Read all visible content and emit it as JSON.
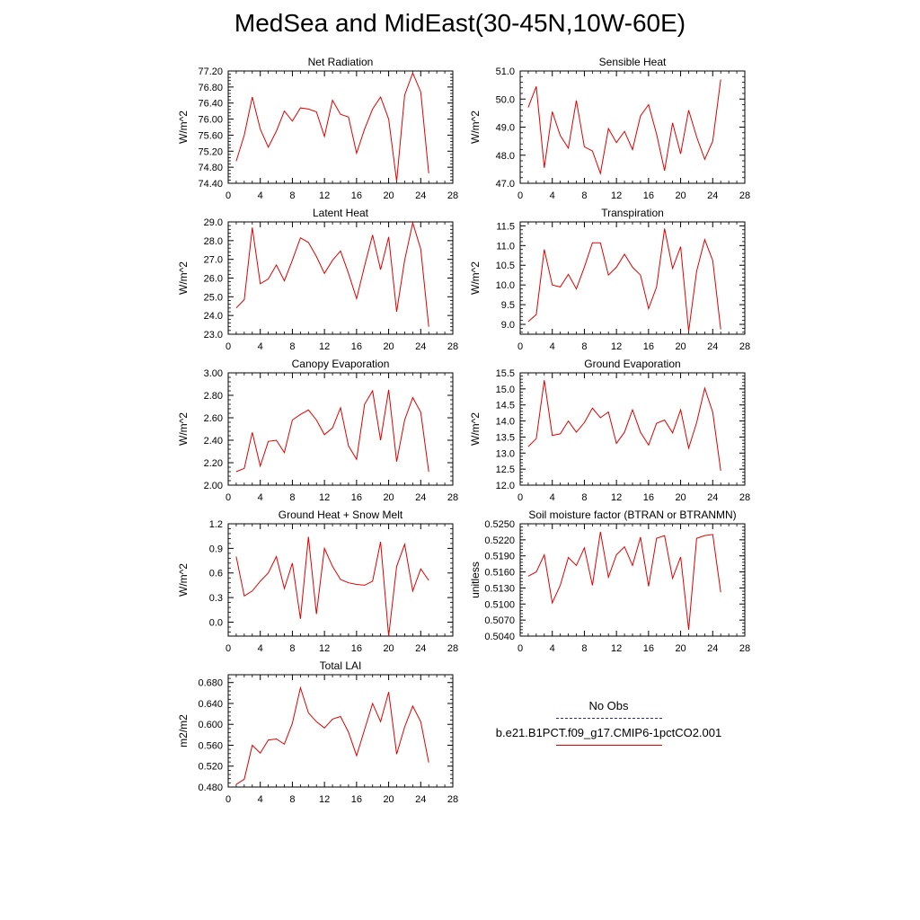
{
  "title": "MedSea and MidEast(30-45N,10W-60E)",
  "legend": {
    "obs_label": "No Obs",
    "model_label": "b.e21.B1PCT.f09_g17.CMIP6-1pctCO2.001",
    "obs_color": "#2a2a8a",
    "model_color": "#e00000"
  },
  "chart_data": [
    {
      "type": "line",
      "title": "Net Radiation",
      "ylabel": "W/m^2",
      "xlim": [
        0,
        28
      ],
      "ylim": [
        74.4,
        77.2
      ],
      "xticks": [
        "0",
        "4",
        "8",
        "12",
        "16",
        "20",
        "24",
        "28"
      ],
      "yticks": [
        "74.40",
        "74.80",
        "75.20",
        "75.60",
        "76.00",
        "76.40",
        "76.80",
        "77.20"
      ],
      "x": [
        1,
        2,
        3,
        4,
        5,
        6,
        7,
        8,
        9,
        10,
        11,
        12,
        13,
        14,
        15,
        16,
        17,
        18,
        19,
        20,
        21,
        22,
        23,
        24,
        25
      ],
      "values": [
        74.95,
        75.6,
        76.55,
        75.75,
        75.3,
        75.7,
        76.2,
        75.95,
        76.28,
        76.25,
        76.18,
        75.57,
        76.47,
        76.12,
        76.05,
        75.15,
        75.75,
        76.25,
        76.55,
        76.0,
        74.45,
        76.6,
        77.15,
        76.68,
        74.65
      ]
    },
    {
      "type": "line",
      "title": "Sensible Heat",
      "ylabel": "W/m^2",
      "xlim": [
        0,
        28
      ],
      "ylim": [
        47.0,
        51.0
      ],
      "xticks": [
        "0",
        "4",
        "8",
        "12",
        "16",
        "20",
        "24",
        "28"
      ],
      "yticks": [
        "47.0",
        "48.0",
        "49.0",
        "50.0",
        "51.0"
      ],
      "x": [
        1,
        2,
        3,
        4,
        5,
        6,
        7,
        8,
        9,
        10,
        11,
        12,
        13,
        14,
        15,
        16,
        17,
        18,
        19,
        20,
        21,
        22,
        23,
        24,
        25
      ],
      "values": [
        49.7,
        50.45,
        47.55,
        49.55,
        48.7,
        48.25,
        49.95,
        48.3,
        48.15,
        47.35,
        48.95,
        48.45,
        48.85,
        48.2,
        49.4,
        49.8,
        48.75,
        47.45,
        49.15,
        48.05,
        49.6,
        48.65,
        47.85,
        48.5,
        50.7
      ]
    },
    {
      "type": "line",
      "title": "Latent Heat",
      "ylabel": "W/m^2",
      "xlim": [
        0,
        28
      ],
      "ylim": [
        23.0,
        29.0
      ],
      "xticks": [
        "0",
        "4",
        "8",
        "12",
        "16",
        "20",
        "24",
        "28"
      ],
      "yticks": [
        "23.0",
        "24.0",
        "25.0",
        "26.0",
        "27.0",
        "28.0",
        "29.0"
      ],
      "x": [
        1,
        2,
        3,
        4,
        5,
        6,
        7,
        8,
        9,
        10,
        11,
        12,
        13,
        14,
        15,
        16,
        17,
        18,
        19,
        20,
        21,
        22,
        23,
        24,
        25
      ],
      "values": [
        24.4,
        24.85,
        28.7,
        25.7,
        25.95,
        26.7,
        25.85,
        26.95,
        28.15,
        27.9,
        27.15,
        26.25,
        26.95,
        27.45,
        26.25,
        24.9,
        26.65,
        28.3,
        26.45,
        28.2,
        24.2,
        26.95,
        28.95,
        27.55,
        23.4
      ]
    },
    {
      "type": "line",
      "title": "Transpiration",
      "ylabel": "W/m^2",
      "xlim": [
        0,
        28
      ],
      "ylim": [
        8.75,
        11.6
      ],
      "xticks": [
        "0",
        "4",
        "8",
        "12",
        "16",
        "20",
        "24",
        "28"
      ],
      "yticks": [
        "9.0",
        "9.5",
        "10.0",
        "10.5",
        "11.0",
        "11.5"
      ],
      "x": [
        1,
        2,
        3,
        4,
        5,
        6,
        7,
        8,
        9,
        10,
        11,
        12,
        13,
        14,
        15,
        16,
        17,
        18,
        19,
        20,
        21,
        22,
        23,
        24,
        25
      ],
      "values": [
        9.07,
        9.25,
        10.9,
        10.0,
        9.95,
        10.27,
        9.9,
        10.45,
        11.07,
        11.07,
        10.25,
        10.45,
        10.78,
        10.45,
        10.25,
        9.4,
        9.95,
        11.43,
        10.42,
        10.97,
        8.82,
        10.35,
        11.15,
        10.62,
        8.87
      ]
    },
    {
      "type": "line",
      "title": "Canopy Evaporation",
      "ylabel": "W/m^2",
      "xlim": [
        0,
        28
      ],
      "ylim": [
        2.0,
        3.0
      ],
      "xticks": [
        "0",
        "4",
        "8",
        "12",
        "16",
        "20",
        "24",
        "28"
      ],
      "yticks": [
        "2.00",
        "2.20",
        "2.40",
        "2.60",
        "2.80",
        "3.00"
      ],
      "x": [
        1,
        2,
        3,
        4,
        5,
        6,
        7,
        8,
        9,
        10,
        11,
        12,
        13,
        14,
        15,
        16,
        17,
        18,
        19,
        20,
        21,
        22,
        23,
        24,
        25
      ],
      "values": [
        2.12,
        2.15,
        2.47,
        2.17,
        2.39,
        2.4,
        2.29,
        2.58,
        2.63,
        2.67,
        2.58,
        2.45,
        2.51,
        2.69,
        2.35,
        2.23,
        2.72,
        2.84,
        2.4,
        2.85,
        2.21,
        2.58,
        2.78,
        2.65,
        2.12
      ]
    },
    {
      "type": "line",
      "title": "Ground Evaporation",
      "ylabel": "W/m^2",
      "xlim": [
        0,
        28
      ],
      "ylim": [
        12.0,
        15.5
      ],
      "xticks": [
        "0",
        "4",
        "8",
        "12",
        "16",
        "20",
        "24",
        "28"
      ],
      "yticks": [
        "12.0",
        "12.5",
        "13.0",
        "13.5",
        "14.0",
        "14.5",
        "15.0",
        "15.5"
      ],
      "x": [
        1,
        2,
        3,
        4,
        5,
        6,
        7,
        8,
        9,
        10,
        11,
        12,
        13,
        14,
        15,
        16,
        17,
        18,
        19,
        20,
        21,
        22,
        23,
        24,
        25
      ],
      "values": [
        13.2,
        13.45,
        15.27,
        13.55,
        13.6,
        14.0,
        13.65,
        13.95,
        14.4,
        14.1,
        14.28,
        13.3,
        13.65,
        14.35,
        13.65,
        13.25,
        13.93,
        14.03,
        13.63,
        14.35,
        13.15,
        13.95,
        15.02,
        14.27,
        12.45
      ]
    },
    {
      "type": "line",
      "title": "Ground Heat + Snow Melt",
      "ylabel": "W/m^2",
      "xlim": [
        0,
        28
      ],
      "ylim": [
        -0.17,
        1.2
      ],
      "xticks": [
        "0",
        "4",
        "8",
        "12",
        "16",
        "20",
        "24",
        "28"
      ],
      "yticks": [
        "0.0",
        "0.3",
        "0.6",
        "0.9",
        "1.2"
      ],
      "x": [
        1,
        2,
        3,
        4,
        5,
        6,
        7,
        8,
        9,
        10,
        11,
        12,
        13,
        14,
        15,
        16,
        17,
        18,
        19,
        20,
        21,
        22,
        23,
        24,
        25
      ],
      "values": [
        0.8,
        0.32,
        0.38,
        0.5,
        0.6,
        0.8,
        0.41,
        0.72,
        0.04,
        1.04,
        0.1,
        0.9,
        0.68,
        0.52,
        0.48,
        0.46,
        0.45,
        0.5,
        0.98,
        -0.17,
        0.68,
        0.95,
        0.38,
        0.65,
        0.51
      ]
    },
    {
      "type": "line",
      "title": "Soil moisture factor (BTRAN or BTRANMN)",
      "ylabel": "unitless",
      "xlim": [
        0,
        28
      ],
      "ylim": [
        0.504,
        0.525
      ],
      "xticks": [
        "0",
        "4",
        "8",
        "12",
        "16",
        "20",
        "24",
        "28"
      ],
      "yticks": [
        "0.5040",
        "0.5070",
        "0.5100",
        "0.5130",
        "0.5160",
        "0.5190",
        "0.5220",
        "0.5250"
      ],
      "x": [
        1,
        2,
        3,
        4,
        5,
        6,
        7,
        8,
        9,
        10,
        11,
        12,
        13,
        14,
        15,
        16,
        17,
        18,
        19,
        20,
        21,
        22,
        23,
        24,
        25
      ],
      "values": [
        0.5152,
        0.516,
        0.5192,
        0.5102,
        0.5135,
        0.5187,
        0.5172,
        0.5205,
        0.5135,
        0.5235,
        0.515,
        0.5192,
        0.5207,
        0.5172,
        0.5225,
        0.5133,
        0.5223,
        0.5228,
        0.5148,
        0.5188,
        0.5052,
        0.5223,
        0.5228,
        0.523,
        0.5122
      ]
    },
    {
      "type": "line",
      "title": "Total LAI",
      "ylabel": "m2/m2",
      "xlim": [
        0,
        28
      ],
      "ylim": [
        0.48,
        0.695
      ],
      "xticks": [
        "0",
        "4",
        "8",
        "12",
        "16",
        "20",
        "24",
        "28"
      ],
      "yticks": [
        "0.480",
        "0.520",
        "0.560",
        "0.600",
        "0.640",
        "0.680"
      ],
      "x": [
        1,
        2,
        3,
        4,
        5,
        6,
        7,
        8,
        9,
        10,
        11,
        12,
        13,
        14,
        15,
        16,
        17,
        18,
        19,
        20,
        21,
        22,
        23,
        24,
        25
      ],
      "values": [
        0.485,
        0.495,
        0.56,
        0.545,
        0.57,
        0.572,
        0.562,
        0.602,
        0.67,
        0.622,
        0.605,
        0.593,
        0.61,
        0.615,
        0.585,
        0.54,
        0.59,
        0.64,
        0.605,
        0.662,
        0.543,
        0.595,
        0.635,
        0.605,
        0.527
      ]
    }
  ]
}
